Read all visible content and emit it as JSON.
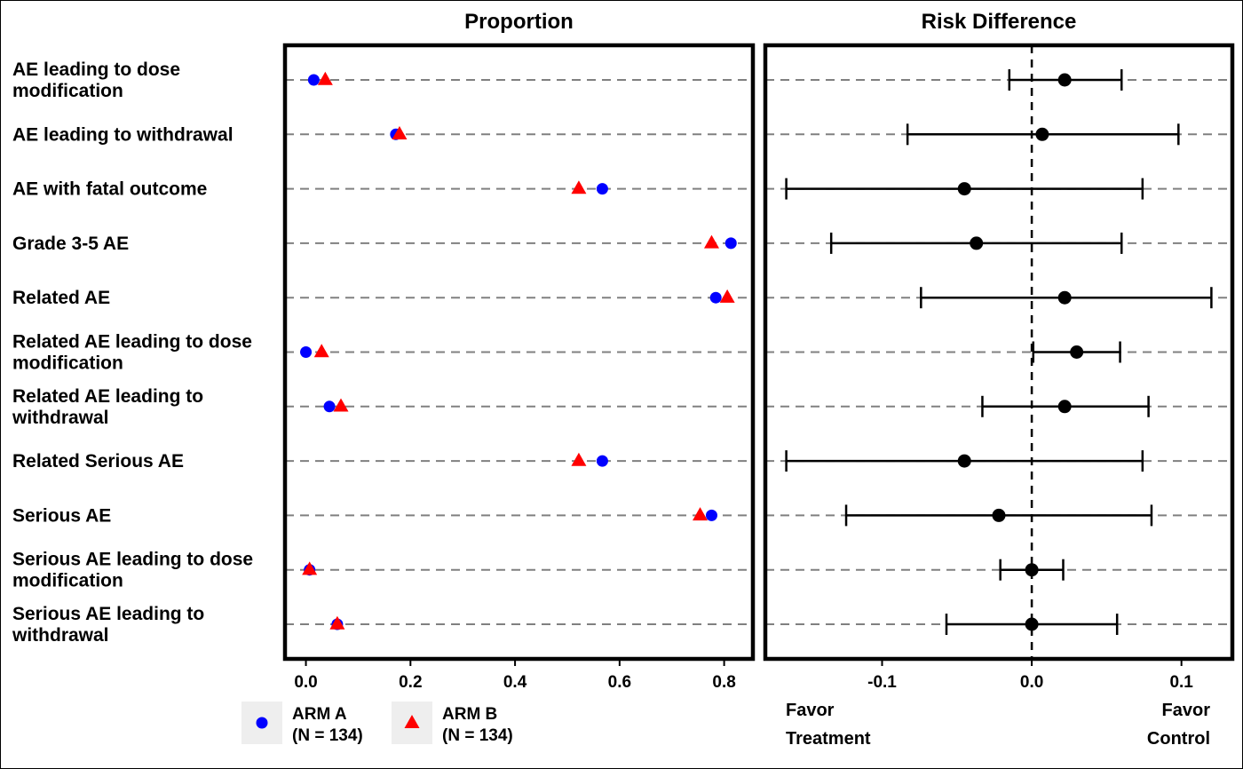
{
  "chart_data": [
    {
      "type": "scatter",
      "title": "Proportion",
      "categories": [
        "AE leading to dose modification",
        "AE leading to withdrawal",
        "AE with fatal outcome",
        "Grade 3-5 AE",
        "Related AE",
        "Related AE leading to dose modification",
        "Related AE leading to withdrawal",
        "Related Serious AE",
        "Serious AE",
        "Serious AE leading to dose modification",
        "Serious AE leading to withdrawal"
      ],
      "category_lines": [
        [
          "AE leading to dose",
          "modification"
        ],
        [
          "AE leading to withdrawal"
        ],
        [
          "AE with fatal outcome"
        ],
        [
          "Grade 3-5 AE"
        ],
        [
          "Related AE"
        ],
        [
          "Related AE leading to dose",
          "modification"
        ],
        [
          "Related AE leading to",
          "withdrawal"
        ],
        [
          "Related Serious AE"
        ],
        [
          "Serious AE"
        ],
        [
          "Serious AE leading to dose",
          "modification"
        ],
        [
          "Serious AE leading to",
          "withdrawal"
        ]
      ],
      "series": [
        {
          "name": "ARM A\n(N = 134)",
          "name_lines": [
            "ARM A",
            "(N = 134)"
          ],
          "marker": "circle",
          "color": "#0000ff",
          "values": [
            0.015,
            0.172,
            0.567,
            0.813,
            0.784,
            0.0,
            0.045,
            0.567,
            0.776,
            0.007,
            0.06
          ]
        },
        {
          "name": "ARM B\n(N = 134)",
          "name_lines": [
            "ARM B",
            "(N = 134)"
          ],
          "marker": "triangle",
          "color": "#ff0000",
          "values": [
            0.037,
            0.179,
            0.522,
            0.776,
            0.806,
            0.03,
            0.067,
            0.522,
            0.754,
            0.007,
            0.06
          ]
        }
      ],
      "xlim": [
        -0.04,
        0.855
      ],
      "xticks": [
        "0.0",
        "0.2",
        "0.4",
        "0.6",
        "0.8"
      ],
      "xtick_values": [
        0.0,
        0.2,
        0.4,
        0.6,
        0.8
      ],
      "grid": "horizontal dashed",
      "legend": "bottom"
    },
    {
      "type": "forest",
      "title": "Risk Difference",
      "estimates": [
        0.022,
        0.007,
        -0.045,
        -0.037,
        0.022,
        0.03,
        0.022,
        -0.045,
        -0.022,
        0.0,
        0.0
      ],
      "lower": [
        -0.015,
        -0.083,
        -0.164,
        -0.134,
        -0.074,
        0.001,
        -0.033,
        -0.164,
        -0.124,
        -0.021,
        -0.057
      ],
      "upper": [
        0.06,
        0.098,
        0.074,
        0.06,
        0.12,
        0.059,
        0.078,
        0.074,
        0.08,
        0.021,
        0.057
      ],
      "xlim": [
        -0.178,
        0.134
      ],
      "xticks": [
        "-0.1",
        "0.0",
        "0.1"
      ],
      "xtick_values": [
        -0.1,
        0.0,
        0.1
      ],
      "reference_line": 0,
      "grid": "horizontal dashed",
      "annotations": {
        "left": [
          "Favor",
          "Treatment"
        ],
        "right": [
          "Favor",
          "Control"
        ]
      }
    }
  ],
  "colors": {
    "arm_a": "#0000ff",
    "arm_b": "#ff0000",
    "estimate": "#000000",
    "gridline": "#808080",
    "legend_key_bg": "#eeeeee"
  }
}
